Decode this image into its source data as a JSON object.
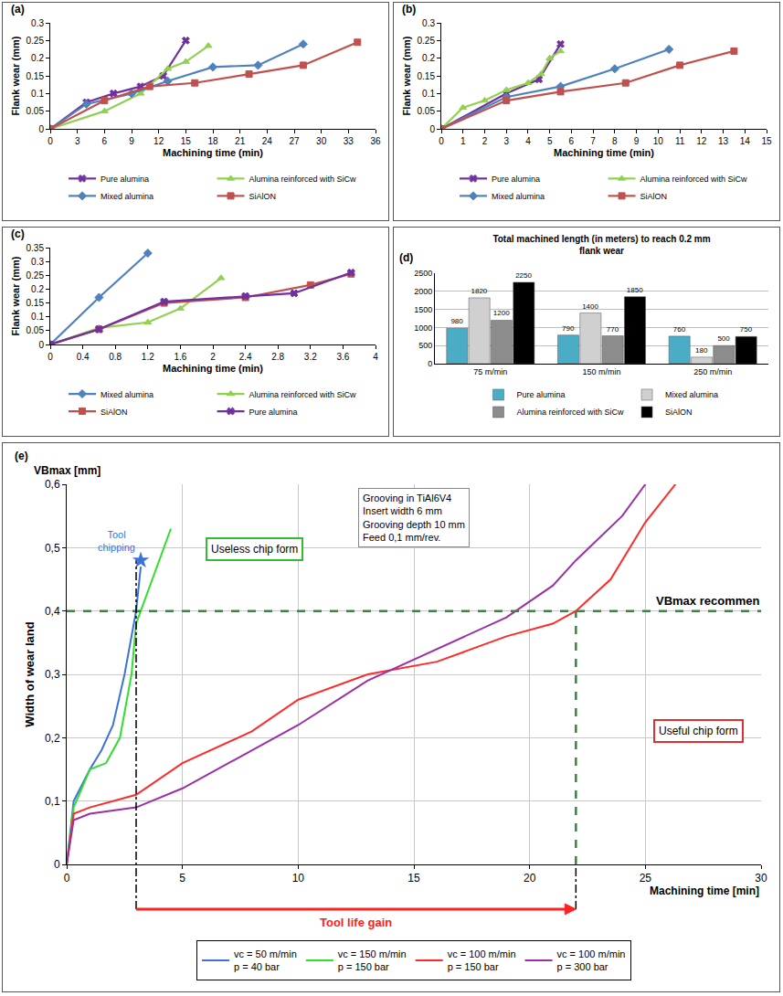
{
  "chart_data": [
    {
      "type": "line",
      "panel": "(a)",
      "x_label": "Machining time (min)",
      "y_label": "Flank wear (mm)",
      "xlim": [
        0,
        36
      ],
      "xticks": [
        0,
        3,
        6,
        9,
        12,
        15,
        18,
        21,
        24,
        27,
        30,
        33,
        36
      ],
      "ylim": [
        0,
        0.3
      ],
      "yticks": [
        0,
        0.05,
        0.1,
        0.15,
        0.2,
        0.25,
        0.3
      ],
      "grid": false,
      "legend": "bottom",
      "series": [
        {
          "name": "Pure alumina",
          "color": "#7030a0",
          "marker": "x",
          "x": [
            0,
            4,
            7,
            10,
            12.5,
            15
          ],
          "values": [
            0,
            0.075,
            0.1,
            0.12,
            0.15,
            0.25
          ]
        },
        {
          "name": "Alumina reinforced with SiCw",
          "color": "#92d050",
          "marker": "triangle",
          "x": [
            0,
            6,
            10,
            13,
            15,
            17.5
          ],
          "values": [
            0,
            0.05,
            0.1,
            0.17,
            0.19,
            0.235
          ]
        },
        {
          "name": "Mixed alumina",
          "color": "#4f81bd",
          "marker": "diamond",
          "x": [
            0,
            4,
            9,
            13,
            18,
            23,
            28
          ],
          "values": [
            0,
            0.07,
            0.1,
            0.135,
            0.175,
            0.18,
            0.24
          ]
        },
        {
          "name": "SiAlON",
          "color": "#c0504d",
          "marker": "square",
          "x": [
            0,
            6,
            11,
            16,
            22,
            28,
            34
          ],
          "values": [
            0,
            0.08,
            0.12,
            0.13,
            0.155,
            0.18,
            0.245
          ]
        }
      ]
    },
    {
      "type": "line",
      "panel": "(b)",
      "x_label": "Machining time (min)",
      "y_label": "Flank wear (mm)",
      "xlim": [
        0,
        15
      ],
      "xticks": [
        0,
        1,
        2,
        3,
        4,
        5,
        6,
        7,
        8,
        9,
        10,
        11,
        12,
        13,
        14,
        15
      ],
      "ylim": [
        0,
        0.3
      ],
      "yticks": [
        0,
        0.05,
        0.1,
        0.15,
        0.2,
        0.25,
        0.3
      ],
      "grid": false,
      "legend": "bottom",
      "series": [
        {
          "name": "Pure alumina",
          "color": "#7030a0",
          "marker": "x",
          "x": [
            0,
            3,
            4.5,
            5.5
          ],
          "values": [
            0,
            0.1,
            0.14,
            0.24
          ]
        },
        {
          "name": "Alumina reinforced with SiCw",
          "color": "#92d050",
          "marker": "triangle",
          "x": [
            0,
            1,
            2,
            3,
            4,
            4.6,
            5,
            5.5
          ],
          "values": [
            0,
            0.06,
            0.08,
            0.11,
            0.13,
            0.155,
            0.2,
            0.22
          ]
        },
        {
          "name": "Mixed alumina",
          "color": "#4f81bd",
          "marker": "diamond",
          "x": [
            0,
            3,
            5.5,
            8,
            10.5
          ],
          "values": [
            0,
            0.09,
            0.12,
            0.17,
            0.225
          ]
        },
        {
          "name": "SiAlON",
          "color": "#c0504d",
          "marker": "square",
          "x": [
            0,
            3,
            5.5,
            8.5,
            11,
            13.5
          ],
          "values": [
            0,
            0.08,
            0.105,
            0.13,
            0.18,
            0.22
          ]
        }
      ]
    },
    {
      "type": "line",
      "panel": "(c)",
      "x_label": "Machining time (min)",
      "y_label": "Flank wear (mm)",
      "xlim": [
        0,
        4
      ],
      "xticks": [
        0,
        0.4,
        0.8,
        1.2,
        1.6,
        2,
        2.4,
        2.8,
        3.2,
        3.6,
        4
      ],
      "ylim": [
        0,
        0.35
      ],
      "yticks": [
        0,
        0.05,
        0.1,
        0.15,
        0.2,
        0.25,
        0.3,
        0.35
      ],
      "grid": false,
      "legend": "bottom",
      "series": [
        {
          "name": "Mixed alumina",
          "color": "#4f81bd",
          "marker": "diamond",
          "x": [
            0,
            0.6,
            1.2
          ],
          "values": [
            0,
            0.17,
            0.33
          ]
        },
        {
          "name": "Alumina reinforced with SiCw",
          "color": "#92d050",
          "marker": "triangle",
          "x": [
            0,
            0.6,
            1.2,
            1.6,
            2.1
          ],
          "values": [
            0,
            0.06,
            0.08,
            0.13,
            0.24
          ]
        },
        {
          "name": "SiAlON",
          "color": "#c0504d",
          "marker": "square",
          "x": [
            0,
            0.6,
            1.4,
            2.4,
            3.2,
            3.7
          ],
          "values": [
            0,
            0.055,
            0.15,
            0.17,
            0.215,
            0.255
          ]
        },
        {
          "name": "Pure alumina",
          "color": "#7030a0",
          "marker": "x",
          "x": [
            0,
            0.6,
            1.4,
            2.4,
            3,
            3.7
          ],
          "values": [
            0,
            0.055,
            0.155,
            0.175,
            0.185,
            0.26
          ]
        }
      ]
    },
    {
      "type": "bar",
      "panel": "(d)",
      "title": "Total machined length (in meters) to reach 0.2 mm flank wear",
      "categories": [
        "75 m/min",
        "150 m/min",
        "250 m/min"
      ],
      "ylim": [
        0,
        2500
      ],
      "yticks": [
        0,
        500,
        1000,
        1500,
        2000,
        2500
      ],
      "grid": true,
      "data_labels": true,
      "legend": "bottom",
      "series": [
        {
          "name": "Pure alumina",
          "color": "#4bacc6",
          "values": [
            980,
            790,
            760
          ]
        },
        {
          "name": "Mixed alumina",
          "color": "#d0d0d0",
          "values": [
            1820,
            1400,
            180
          ]
        },
        {
          "name": "Alumina reinforced with SiCw",
          "color": "#8c8c8c",
          "values": [
            1200,
            770,
            500
          ]
        },
        {
          "name": "SiAlON",
          "color": "#000000",
          "values": [
            2250,
            1850,
            750
          ]
        }
      ]
    },
    {
      "type": "line",
      "panel": "(e)",
      "x_label": "Machining time [min]",
      "y_label": "Width of wear land",
      "y_unit_label": "VBmax [mm]",
      "info_box": [
        "Grooving in TiAl6V4",
        "Insert width 6 mm",
        "Grooving depth 10 mm",
        "Feed 0,1 mm/rev."
      ],
      "xlim": [
        0,
        30
      ],
      "xticks": [
        0,
        5,
        10,
        15,
        20,
        25,
        30
      ],
      "ylim": [
        0,
        0.6
      ],
      "yticks": [
        0,
        {
          "value": 0.1,
          "label": "0,1"
        },
        {
          "value": 0.2,
          "label": "0,2"
        },
        {
          "value": 0.3,
          "label": "0,3"
        },
        {
          "value": 0.4,
          "label": "0,4"
        },
        {
          "value": 0.5,
          "label": "0,5"
        },
        {
          "value": 0.6,
          "label": "0,6"
        }
      ],
      "grid": true,
      "legend": "bottom",
      "series": [
        {
          "name": "vc = 50 m/min\np = 40 bar",
          "color": "#3d72d8",
          "x": [
            0,
            0.3,
            1,
            1.5,
            2,
            2.5,
            3,
            3.2
          ],
          "values": [
            0,
            0.1,
            0.15,
            0.18,
            0.22,
            0.3,
            0.4,
            0.47
          ]
        },
        {
          "name": "vc = 150 m/min\np = 150 bar",
          "color": "#2ee02e",
          "x": [
            0,
            0.3,
            1,
            1.7,
            2.3,
            2.8,
            3,
            3.4,
            4,
            4.5
          ],
          "values": [
            0,
            0.09,
            0.15,
            0.16,
            0.2,
            0.3,
            0.38,
            0.42,
            0.48,
            0.53
          ]
        },
        {
          "name": "vc = 100 m/min\np = 150 bar",
          "color": "#ff2a2a",
          "x": [
            0,
            0.3,
            1,
            3,
            5,
            8,
            10,
            13,
            16,
            19,
            21,
            22,
            23.5,
            25,
            26.3
          ],
          "values": [
            0,
            0.08,
            0.09,
            0.11,
            0.16,
            0.21,
            0.26,
            0.3,
            0.32,
            0.36,
            0.38,
            0.4,
            0.45,
            0.54,
            0.6
          ]
        },
        {
          "name": "vc = 100 m/min\np = 300 bar",
          "color": "#9a2fa8",
          "x": [
            0,
            0.3,
            1,
            3,
            5,
            8,
            10,
            13,
            16,
            19,
            21,
            22,
            24,
            25
          ],
          "values": [
            0,
            0.07,
            0.08,
            0.09,
            0.12,
            0.18,
            0.22,
            0.29,
            0.34,
            0.39,
            0.44,
            0.48,
            0.55,
            0.6
          ]
        }
      ],
      "tool_chipping": {
        "text": "Tool chipping",
        "x": 3.2,
        "y": 0.48,
        "marker": "star",
        "color": "#3d72d8"
      },
      "chip_notes": [
        {
          "text": "Useless chip form",
          "color": "#33bb33"
        },
        {
          "text": "Useful chip form",
          "color": "#e03030"
        }
      ],
      "recommended": {
        "text": "VBmax recommen",
        "x": 22,
        "y": 0.4,
        "color": "#2e8b3a"
      },
      "tool_life_gain": {
        "text": "Tool life gain",
        "from": 3,
        "to": 22,
        "color": "#ff2020"
      }
    }
  ]
}
